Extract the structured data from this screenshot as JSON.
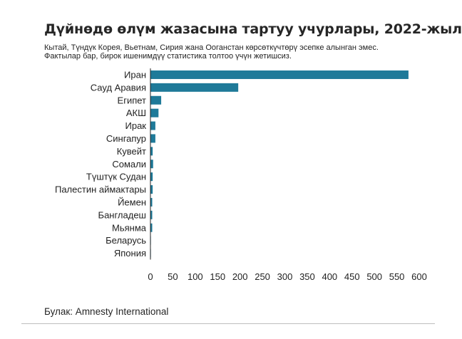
{
  "header": {
    "title": "Дүйнөдө өлүм жазасына тартуу учурлары, 2022-жыл",
    "subtitle": "Кытай, Түндүк Корея, Вьетнам, Сирия жана Ооганстан көрсөткүчтөрү эсепке алынган эмес. Фактылар бар, бирок ишенимдүү статистика толтоо үчүн жетишсиз."
  },
  "source": "Булак: Amnesty International",
  "colors": {
    "bar": "#1f7a99",
    "text": "#222222"
  },
  "chart_data": {
    "type": "bar",
    "orientation": "horizontal",
    "title": "Дүйнөдө өлүм жазасына тартуу учурлары, 2022-жыл",
    "xlabel": "",
    "ylabel": "",
    "categories": [
      "Иран",
      "Сауд Аравия",
      "Египет",
      "АКШ",
      "Ирак",
      "Сингапур",
      "Кувейт",
      "Сомали",
      "Түштүк Судан",
      "Палестин аймактары",
      "Йемен",
      "Бангладеш",
      "Мьянма",
      "Беларусь",
      "Япония"
    ],
    "values": [
      576,
      196,
      24,
      18,
      11,
      11,
      5,
      6,
      5,
      5,
      4,
      4,
      4,
      1,
      1
    ],
    "xlim": [
      0,
      600
    ],
    "xticks": [
      0,
      50,
      100,
      150,
      200,
      250,
      300,
      350,
      400,
      450,
      500,
      550,
      600
    ],
    "grid": false,
    "legend": "none"
  }
}
